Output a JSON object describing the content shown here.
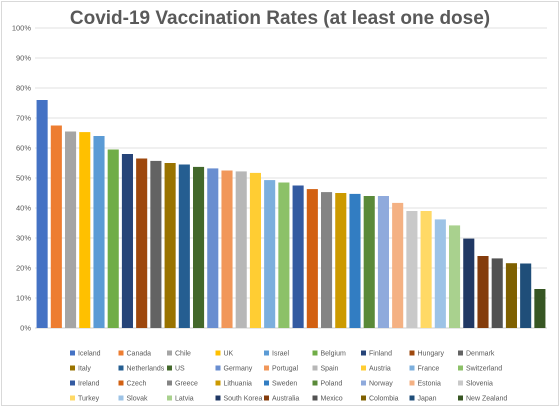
{
  "chart_data": {
    "type": "bar",
    "title": "Covid-19 Vaccination Rates (at least one dose)",
    "xlabel": "",
    "ylabel": "",
    "ylim": [
      0,
      100
    ],
    "y_ticks": [
      "0%",
      "10%",
      "20%",
      "30%",
      "40%",
      "50%",
      "60%",
      "70%",
      "80%",
      "90%",
      "100%"
    ],
    "grid": true,
    "legend_position": "bottom",
    "categories": [
      "Iceland",
      "Canada",
      "Chile",
      "UK",
      "Israel",
      "Belgium",
      "Finland",
      "Hungary",
      "Denmark",
      "Italy",
      "Netherlands",
      "US",
      "Germany",
      "Portugal",
      "Spain",
      "Austria",
      "France",
      "Switzerland",
      "Ireland",
      "Czech",
      "Greece",
      "Lithuania",
      "Sweden",
      "Poland",
      "Norway",
      "Estonia",
      "Slovenia",
      "Turkey",
      "Slovak",
      "Latvia",
      "South Korea",
      "Australia",
      "Mexico",
      "Colombia",
      "Japan",
      "New Zealand"
    ],
    "values": [
      76,
      67.5,
      65.5,
      65.3,
      64,
      59.5,
      58,
      56.5,
      55.7,
      55,
      54.5,
      53.7,
      53.2,
      52.5,
      52.2,
      51.7,
      49.3,
      48.5,
      47.5,
      46.3,
      45.3,
      45,
      44.7,
      44,
      44,
      41.7,
      39,
      39,
      36.2,
      34.2,
      29.8,
      24,
      23.2,
      21.6,
      21.5,
      13
    ],
    "colors": [
      "#4472C4",
      "#ED7D31",
      "#A5A5A5",
      "#FFC000",
      "#5B9BD5",
      "#70AD47",
      "#264478",
      "#9E480E",
      "#636363",
      "#997300",
      "#255E91",
      "#43682B",
      "#698ED0",
      "#F1975A",
      "#B7B7B7",
      "#FFCD33",
      "#7CAFDD",
      "#8CC168",
      "#335AA1",
      "#D26012",
      "#848484",
      "#CC9A00",
      "#327DC2",
      "#5A8A39",
      "#8FAADC",
      "#F4B183",
      "#C9C9C9",
      "#FFD966",
      "#9DC3E6",
      "#A9D18E",
      "#203864",
      "#843C0C",
      "#525252",
      "#7F6000",
      "#1F4E79",
      "#375623"
    ]
  }
}
